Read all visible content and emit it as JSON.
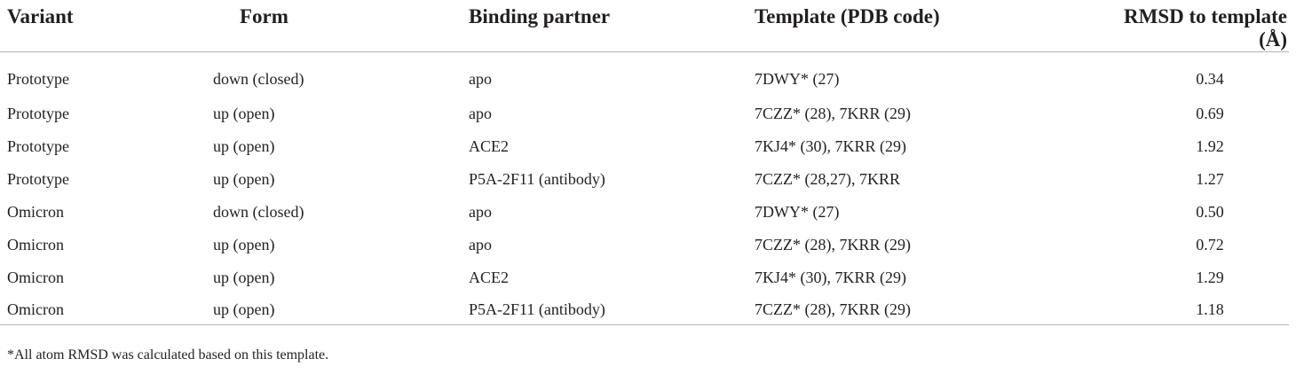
{
  "table": {
    "headers": [
      "Variant",
      "Form",
      "Binding partner",
      "Template (PDB code)",
      "RMSD to template (Å)"
    ],
    "rows": [
      [
        "Prototype",
        "down (closed)",
        "apo",
        "7DWY* (27)",
        "0.34"
      ],
      [
        "Prototype",
        "up (open)",
        "apo",
        "7CZZ* (28), 7KRR (29)",
        "0.69"
      ],
      [
        "Prototype",
        "up (open)",
        "ACE2",
        "7KJ4* (30), 7KRR (29)",
        "1.92"
      ],
      [
        "Prototype",
        "up (open)",
        "P5A-2F11 (antibody)",
        "7CZZ* (28,27), 7KRR",
        "1.27"
      ],
      [
        "Omicron",
        "down (closed)",
        "apo",
        "7DWY* (27)",
        "0.50"
      ],
      [
        "Omicron",
        "up (open)",
        "apo",
        "7CZZ* (28), 7KRR (29)",
        "0.72"
      ],
      [
        "Omicron",
        "up (open)",
        "ACE2",
        "7KJ4* (30), 7KRR (29)",
        "1.29"
      ],
      [
        "Omicron",
        "up (open)",
        "P5A-2F11 (antibody)",
        "7CZZ* (28), 7KRR (29)",
        "1.18"
      ]
    ]
  },
  "footnote": "*All atom RMSD was calculated based on this template."
}
